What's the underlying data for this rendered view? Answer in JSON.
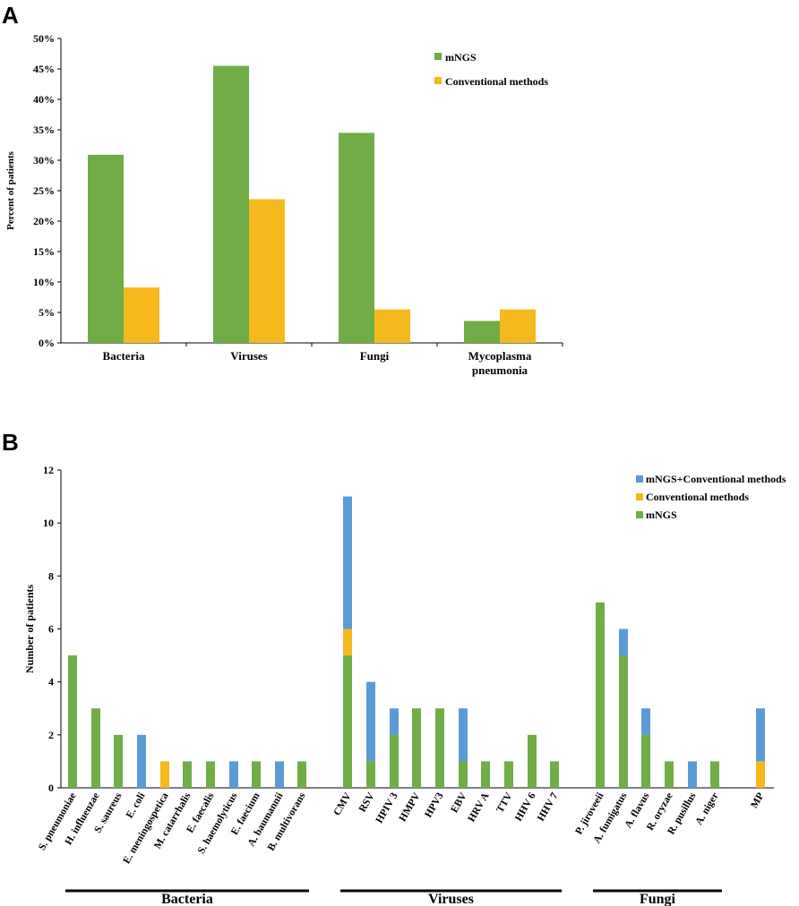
{
  "chart_data": [
    {
      "panel": "A",
      "type": "bar",
      "title": "",
      "xlabel": "",
      "ylabel": "Percent of patients",
      "ylim": [
        0,
        50
      ],
      "yticks": [
        "0%",
        "5%",
        "10%",
        "15%",
        "20%",
        "25%",
        "30%",
        "35%",
        "40%",
        "45%",
        "50%"
      ],
      "categories": [
        [
          "Bacteria"
        ],
        [
          "Viruses"
        ],
        [
          "Fungi"
        ],
        [
          "Mycoplasma",
          "pneumonia"
        ]
      ],
      "series": [
        {
          "name": "mNGS",
          "values": [
            30.9,
            45.5,
            34.5,
            3.6
          ],
          "color": "#70AD47"
        },
        {
          "name": "Conventional methods",
          "values": [
            9.1,
            23.6,
            5.5,
            5.5
          ],
          "color": "#F5B91E"
        }
      ],
      "legend_position": "top-right"
    },
    {
      "panel": "B",
      "type": "bar",
      "stacked": true,
      "title": "",
      "xlabel": "",
      "ylabel": "Number of patients",
      "ylim": [
        0,
        12
      ],
      "yticks": [
        "0",
        "2",
        "4",
        "6",
        "8",
        "10",
        "12"
      ],
      "categories": [
        "S. pneumoniae",
        "H. influenzae",
        "S. saureus",
        "E. coli",
        "E. meningospetica",
        "M. catarrhalis",
        "E. faecalis",
        "S. haemolyticus",
        "E. faecium",
        "A. baumannii",
        "B. multivorans",
        "CMV",
        "RSV",
        "HPIV 3",
        "HMPV",
        "HPV3",
        "EBV",
        "HRV A",
        "TTV",
        "HHV 6",
        "HHV 7",
        "P. jiroveeii",
        "A. fumigatus",
        "A. flavus",
        "R. oryzae",
        "R. pusillus",
        "A. niger",
        "MP"
      ],
      "series": [
        {
          "name": "mNGS",
          "color": "#70AD47",
          "values": [
            5,
            3,
            2,
            0,
            0,
            1,
            1,
            0,
            1,
            0,
            1,
            5,
            1,
            2,
            3,
            3,
            1,
            1,
            1,
            2,
            1,
            7,
            5,
            2,
            1,
            0,
            1,
            0
          ]
        },
        {
          "name": "Conventional methods",
          "color": "#F5B91E",
          "values": [
            0,
            0,
            0,
            0,
            1,
            0,
            0,
            0,
            0,
            0,
            0,
            1,
            0,
            0,
            0,
            0,
            0,
            0,
            0,
            0,
            0,
            0,
            0,
            0,
            0,
            0,
            0,
            1
          ]
        },
        {
          "name": "mNGS+Conventional methods",
          "color": "#5B9BD5",
          "values": [
            0,
            0,
            0,
            2,
            0,
            0,
            0,
            1,
            0,
            1,
            0,
            5,
            3,
            1,
            0,
            0,
            2,
            0,
            0,
            0,
            0,
            0,
            1,
            1,
            0,
            1,
            0,
            2
          ]
        }
      ],
      "legend_order": [
        "mNGS+Conventional methods",
        "Conventional methods",
        "mNGS"
      ],
      "legend_position": "top-right",
      "groups": [
        {
          "label": "Bacteria",
          "from": 0,
          "to": 10
        },
        {
          "label": "Viruses",
          "from": 11,
          "to": 20
        },
        {
          "label": "Fungi",
          "from": 21,
          "to": 26
        }
      ]
    }
  ]
}
